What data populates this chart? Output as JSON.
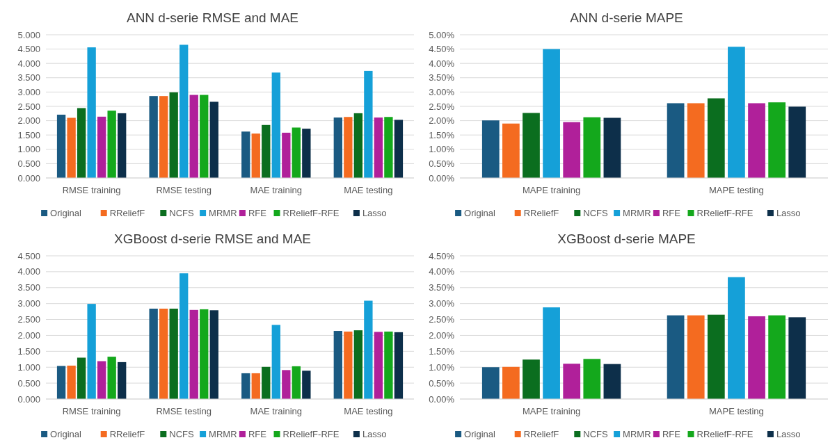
{
  "chart_data": [
    {
      "type": "bar",
      "title": "ANN d-serie RMSE and MAE",
      "categories": [
        "RMSE training",
        "RMSE testing",
        "MAE training",
        "MAE testing"
      ],
      "grid": "y",
      "legend": "bottom",
      "ylim": [
        0,
        5
      ],
      "yticks": [
        {
          "value": 0,
          "label": "0.000"
        },
        {
          "value": 0.5,
          "label": "0.500"
        },
        {
          "value": 1,
          "label": "1.000"
        },
        {
          "value": 1.5,
          "label": "1.500"
        },
        {
          "value": 2,
          "label": "2.000"
        },
        {
          "value": 2.5,
          "label": "2.500"
        },
        {
          "value": 3,
          "label": "3.000"
        },
        {
          "value": 3.5,
          "label": "3.500"
        },
        {
          "value": 4,
          "label": "4.000"
        },
        {
          "value": 4.5,
          "label": "4.500"
        },
        {
          "value": 5,
          "label": "5.000"
        }
      ],
      "series": [
        {
          "name": "Original",
          "color": "#1a5a82",
          "values": [
            2.21,
            2.86,
            1.62,
            2.11
          ]
        },
        {
          "name": "RReliefF",
          "color": "#f46b20",
          "values": [
            2.1,
            2.86,
            1.55,
            2.13
          ]
        },
        {
          "name": "NCFS",
          "color": "#0b6e1f",
          "values": [
            2.44,
            2.99,
            1.85,
            2.26
          ]
        },
        {
          "name": "MRMR",
          "color": "#15a0d8",
          "values": [
            4.56,
            4.65,
            3.68,
            3.74
          ]
        },
        {
          "name": "RFE",
          "color": "#b0209a",
          "values": [
            2.14,
            2.9,
            1.58,
            2.11
          ]
        },
        {
          "name": "RReliefF-RFE",
          "color": "#14a81c",
          "values": [
            2.35,
            2.9,
            1.76,
            2.13
          ]
        },
        {
          "name": "Lasso",
          "color": "#0d2f4a",
          "values": [
            2.26,
            2.66,
            1.72,
            2.03
          ]
        }
      ]
    },
    {
      "type": "bar",
      "title": "ANN d-serie MAPE",
      "categories": [
        "MAPE training",
        "MAPE testing"
      ],
      "grid": "y",
      "legend": "bottom",
      "ylim": [
        0,
        5
      ],
      "yticks": [
        {
          "value": 0,
          "label": "0.00%"
        },
        {
          "value": 0.5,
          "label": "0.50%"
        },
        {
          "value": 1,
          "label": "1.00%"
        },
        {
          "value": 1.5,
          "label": "1.50%"
        },
        {
          "value": 2,
          "label": "2.00%"
        },
        {
          "value": 2.5,
          "label": "2.50%"
        },
        {
          "value": 3,
          "label": "3.00%"
        },
        {
          "value": 3.5,
          "label": "3.50%"
        },
        {
          "value": 4,
          "label": "4.00%"
        },
        {
          "value": 4.5,
          "label": "4.50%"
        },
        {
          "value": 5,
          "label": "5.00%"
        }
      ],
      "series": [
        {
          "name": "Original",
          "color": "#1a5a82",
          "values": [
            2.01,
            2.61
          ]
        },
        {
          "name": "RReliefF",
          "color": "#f46b20",
          "values": [
            1.9,
            2.61
          ]
        },
        {
          "name": "NCFS",
          "color": "#0b6e1f",
          "values": [
            2.27,
            2.78
          ]
        },
        {
          "name": "MRMR",
          "color": "#15a0d8",
          "values": [
            4.5,
            4.58
          ]
        },
        {
          "name": "RFE",
          "color": "#b0209a",
          "values": [
            1.95,
            2.61
          ]
        },
        {
          "name": "RReliefF-RFE",
          "color": "#14a81c",
          "values": [
            2.12,
            2.64
          ]
        },
        {
          "name": "Lasso",
          "color": "#0d2f4a",
          "values": [
            2.1,
            2.49
          ]
        }
      ]
    },
    {
      "type": "bar",
      "title": "XGBoost d-serie RMSE and MAE",
      "categories": [
        "RMSE training",
        "RMSE testing",
        "MAE training",
        "MAE testing"
      ],
      "grid": "y",
      "legend": "bottom",
      "ylim": [
        0,
        4.5
      ],
      "yticks": [
        {
          "value": 0,
          "label": "0.000"
        },
        {
          "value": 0.5,
          "label": "0.500"
        },
        {
          "value": 1,
          "label": "1.000"
        },
        {
          "value": 1.5,
          "label": "1.500"
        },
        {
          "value": 2,
          "label": "2.000"
        },
        {
          "value": 2.5,
          "label": "2.500"
        },
        {
          "value": 3,
          "label": "3.000"
        },
        {
          "value": 3.5,
          "label": "3.500"
        },
        {
          "value": 4,
          "label": "4.000"
        },
        {
          "value": 4.5,
          "label": "4.500"
        }
      ],
      "series": [
        {
          "name": "Original",
          "color": "#1a5a82",
          "values": [
            1.04,
            2.84,
            0.81,
            2.14
          ]
        },
        {
          "name": "RReliefF",
          "color": "#f46b20",
          "values": [
            1.05,
            2.84,
            0.81,
            2.12
          ]
        },
        {
          "name": "NCFS",
          "color": "#0b6e1f",
          "values": [
            1.3,
            2.84,
            1.01,
            2.16
          ]
        },
        {
          "name": "MRMR",
          "color": "#15a0d8",
          "values": [
            2.99,
            3.95,
            2.33,
            3.09
          ]
        },
        {
          "name": "RFE",
          "color": "#b0209a",
          "values": [
            1.19,
            2.8,
            0.91,
            2.11
          ]
        },
        {
          "name": "RReliefF-RFE",
          "color": "#14a81c",
          "values": [
            1.33,
            2.82,
            1.03,
            2.12
          ]
        },
        {
          "name": "Lasso",
          "color": "#0d2f4a",
          "values": [
            1.16,
            2.79,
            0.89,
            2.1
          ]
        }
      ]
    },
    {
      "type": "bar",
      "title": "XGBoost d-serie MAPE",
      "categories": [
        "MAPE training",
        "MAPE testing"
      ],
      "grid": "y",
      "legend": "bottom",
      "ylim": [
        0,
        4.5
      ],
      "yticks": [
        {
          "value": 0,
          "label": "0.00%"
        },
        {
          "value": 0.5,
          "label": "0.50%"
        },
        {
          "value": 1,
          "label": "1.00%"
        },
        {
          "value": 1.5,
          "label": "1.50%"
        },
        {
          "value": 2,
          "label": "2.00%"
        },
        {
          "value": 2.5,
          "label": "2.50%"
        },
        {
          "value": 3,
          "label": "3.00%"
        },
        {
          "value": 3.5,
          "label": "3.50%"
        },
        {
          "value": 4,
          "label": "4.00%"
        },
        {
          "value": 4.5,
          "label": "4.50%"
        }
      ],
      "series": [
        {
          "name": "Original",
          "color": "#1a5a82",
          "values": [
            1.0,
            2.63
          ]
        },
        {
          "name": "RReliefF",
          "color": "#f46b20",
          "values": [
            1.01,
            2.63
          ]
        },
        {
          "name": "NCFS",
          "color": "#0b6e1f",
          "values": [
            1.24,
            2.65
          ]
        },
        {
          "name": "MRMR",
          "color": "#15a0d8",
          "values": [
            2.88,
            3.83
          ]
        },
        {
          "name": "RFE",
          "color": "#b0209a",
          "values": [
            1.11,
            2.6
          ]
        },
        {
          "name": "RReliefF-RFE",
          "color": "#14a81c",
          "values": [
            1.26,
            2.63
          ]
        },
        {
          "name": "Lasso",
          "color": "#0d2f4a",
          "values": [
            1.1,
            2.57
          ]
        }
      ]
    }
  ]
}
